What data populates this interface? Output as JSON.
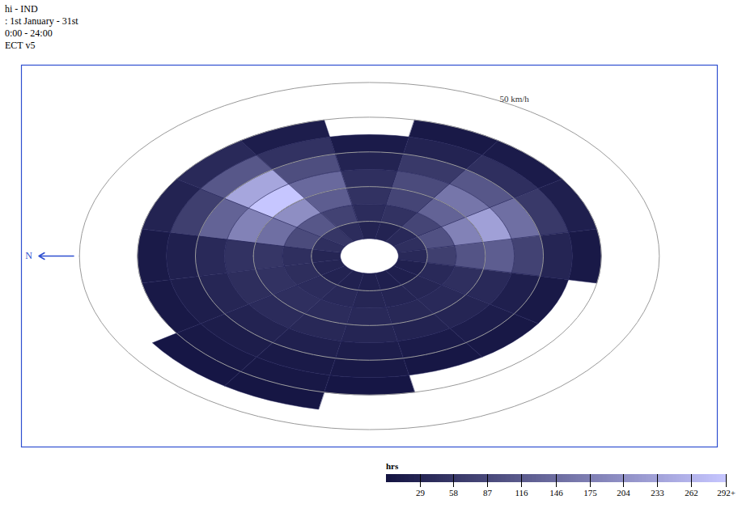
{
  "chart_data": {
    "type": "wind_rose",
    "title": "hi - IND",
    "subtitle": ": 1st January - 31st",
    "annotations": [
      "0:00 - 24:00",
      "ECT v5"
    ],
    "north": "N",
    "directions": [
      0,
      22.5,
      45,
      67.5,
      90,
      112.5,
      135,
      157.5,
      180,
      202.5,
      225,
      247.5,
      270,
      292.5,
      315,
      337.5
    ],
    "speed_bins": [
      5,
      10,
      15,
      20,
      25,
      30,
      35,
      40,
      45
    ],
    "hours": [
      [
        30,
        45,
        55,
        50,
        35,
        20,
        10,
        0
      ],
      [
        45,
        90,
        150,
        180,
        130,
        70,
        25,
        0
      ],
      [
        55,
        110,
        200,
        292,
        240,
        110,
        35,
        0
      ],
      [
        40,
        75,
        120,
        140,
        95,
        50,
        15,
        0
      ],
      [
        25,
        40,
        50,
        45,
        25,
        12,
        0,
        0
      ],
      [
        25,
        50,
        80,
        90,
        60,
        25,
        8,
        0
      ],
      [
        35,
        80,
        130,
        160,
        110,
        45,
        12,
        0
      ],
      [
        45,
        100,
        180,
        230,
        150,
        60,
        18,
        0
      ],
      [
        35,
        70,
        105,
        120,
        75,
        28,
        8,
        0
      ],
      [
        20,
        35,
        45,
        35,
        18,
        8,
        0,
        0
      ],
      [
        18,
        30,
        35,
        28,
        15,
        6,
        0,
        0
      ],
      [
        18,
        28,
        32,
        25,
        12,
        5,
        0,
        0
      ],
      [
        20,
        30,
        35,
        28,
        15,
        8,
        4,
        0
      ],
      [
        22,
        35,
        40,
        32,
        20,
        10,
        6,
        3
      ],
      [
        25,
        40,
        45,
        38,
        25,
        14,
        8,
        4
      ],
      [
        28,
        42,
        50,
        42,
        30,
        16,
        8,
        0
      ]
    ],
    "grid_rings": [
      10,
      20,
      30,
      40,
      50
    ],
    "rlim": [
      0,
      50
    ],
    "rticks": [
      {
        "value": 50,
        "label": "50 km/h"
      }
    ],
    "xlim": [
      -60,
      60
    ],
    "ylim": [
      -55,
      55
    ],
    "tick_labels": false,
    "color_label": "hrs",
    "color_range": [
      0,
      292
    ],
    "color_ticks": [
      29,
      58,
      87,
      116,
      146,
      175,
      204,
      233,
      262,
      {
        "value": 292,
        "label": "292+"
      }
    ]
  }
}
